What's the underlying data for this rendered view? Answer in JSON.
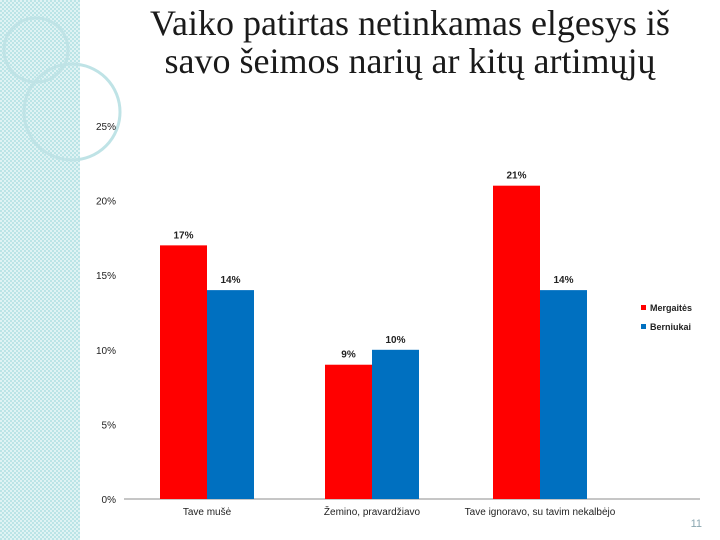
{
  "slide": {
    "title": "Vaiko  patirtas netinkamas elgesys iš savo šeimos narių ar kitų artimųjų",
    "number": "11"
  },
  "colors": {
    "mergaites": "#ff0000",
    "berniukai": "#0070c0",
    "decor_circle": "#bfe3e6"
  },
  "chart_data": {
    "type": "bar",
    "categories": [
      "Tave mušė",
      "Žemino, pravardžiavo",
      "Tave ignoravo, su tavim nekalbėjo"
    ],
    "series": [
      {
        "name": "Mergaitės",
        "values": [
          17,
          9,
          21
        ],
        "labels": [
          "17%",
          "9%",
          "21%"
        ],
        "color": "#ff0000"
      },
      {
        "name": "Berniukai",
        "values": [
          14,
          10,
          14
        ],
        "labels": [
          "14%",
          "10%",
          "14%"
        ],
        "color": "#0070c0"
      }
    ],
    "yticks": [
      0,
      5,
      10,
      15,
      20,
      25
    ],
    "ytick_labels": [
      "0%",
      "5%",
      "10%",
      "15%",
      "20%",
      "25%"
    ],
    "ylim": [
      0,
      25
    ],
    "legend": "right",
    "grid": false
  }
}
